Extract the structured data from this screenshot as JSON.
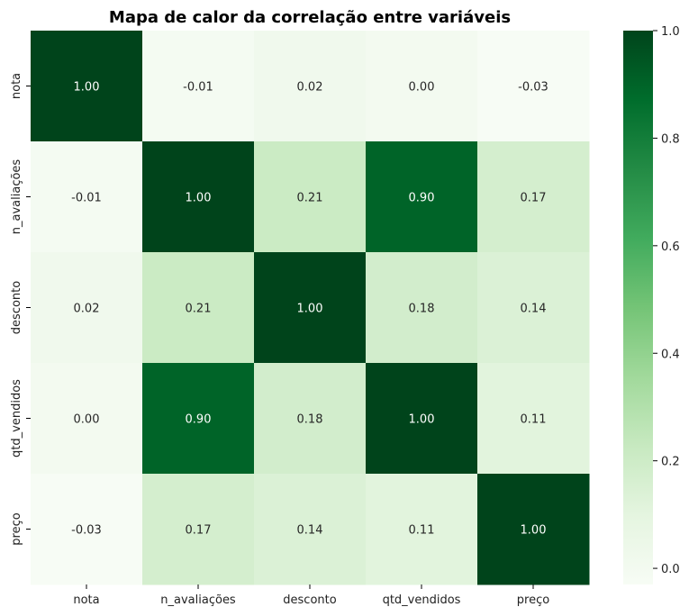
{
  "chart_data": {
    "type": "heatmap",
    "title": "Mapa de calor da correlação entre variáveis",
    "xlabel": "",
    "ylabel": "",
    "x_labels": [
      "nota",
      "n_avaliações",
      "desconto",
      "qtd_vendidos",
      "preço"
    ],
    "y_labels": [
      "nota",
      "n_avaliações",
      "desconto",
      "qtd_vendidos",
      "preço"
    ],
    "values": [
      [
        1.0,
        -0.01,
        0.02,
        0.0,
        -0.03
      ],
      [
        -0.01,
        1.0,
        0.21,
        0.9,
        0.17
      ],
      [
        0.02,
        0.21,
        1.0,
        0.18,
        0.14
      ],
      [
        0.0,
        0.9,
        0.18,
        1.0,
        0.11
      ],
      [
        -0.03,
        0.17,
        0.14,
        0.11,
        1.0
      ]
    ],
    "annotations": [
      [
        "1.00",
        "-0.01",
        "0.02",
        "0.00",
        "-0.03"
      ],
      [
        "-0.01",
        "1.00",
        "0.21",
        "0.90",
        "0.17"
      ],
      [
        "0.02",
        "0.21",
        "1.00",
        "0.18",
        "0.14"
      ],
      [
        "0.00",
        "0.90",
        "0.18",
        "1.00",
        "0.11"
      ],
      [
        "-0.03",
        "0.17",
        "0.14",
        "0.11",
        "1.00"
      ]
    ],
    "colormap": "Greens",
    "colormap_stops": [
      "#f7fcf5",
      "#e5f5e0",
      "#c7e9c0",
      "#a1d99b",
      "#74c476",
      "#41ab5d",
      "#238b45",
      "#006d2c",
      "#00441b"
    ],
    "vmin": -0.03,
    "vmax": 1.0,
    "colorbar_ticks": [
      "0.0",
      "0.2",
      "0.4",
      "0.6",
      "0.8",
      "1.0"
    ],
    "colorbar_tick_values": [
      0.0,
      0.2,
      0.4,
      0.6,
      0.8,
      1.0
    ]
  }
}
